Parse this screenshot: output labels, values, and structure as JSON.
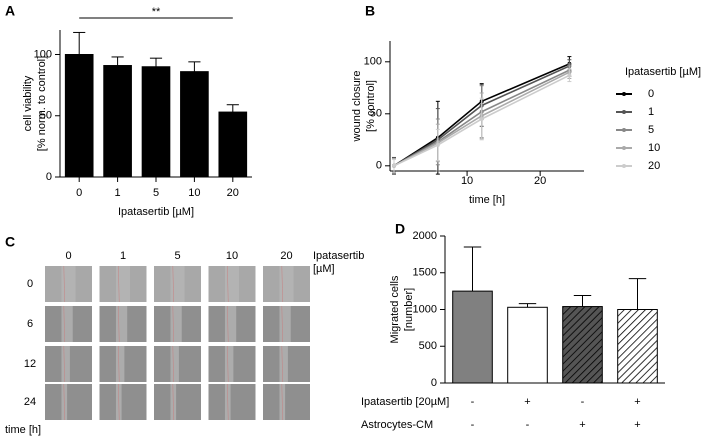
{
  "chart_data": [
    {
      "type": "bar",
      "panel": "A",
      "categories": [
        "0",
        "1",
        "5",
        "10",
        "20"
      ],
      "values": [
        100,
        91,
        90,
        86,
        53
      ],
      "errors": [
        18,
        7,
        7,
        8,
        6
      ],
      "color": "#000000",
      "ylim": [
        0,
        120
      ],
      "yticks": [
        0,
        50,
        100
      ],
      "xlabel": "Ipatasertib [µM]",
      "ylabel": [
        "cell viability",
        "[% norm. to control]"
      ],
      "significance": {
        "label": "**",
        "from": "0",
        "to": "20"
      }
    },
    {
      "type": "line",
      "panel": "B",
      "x": [
        0,
        6,
        12,
        24
      ],
      "xlim": [
        0,
        26
      ],
      "xticks": [
        10,
        20
      ],
      "ylim": [
        -5,
        120
      ],
      "yticks": [
        0,
        50,
        100
      ],
      "xlabel": "time [h]",
      "ylabel": [
        "wound closure",
        "[% control]"
      ],
      "legend_title": "Ipatasertib [µM]",
      "series": [
        {
          "name": "0",
          "color": "#000000",
          "values": [
            0,
            27,
            62,
            98
          ],
          "errors": [
            8,
            35,
            17,
            7
          ]
        },
        {
          "name": "1",
          "color": "#555555",
          "values": [
            0,
            25,
            58,
            96
          ],
          "errors": [
            8,
            30,
            20,
            6
          ]
        },
        {
          "name": "5",
          "color": "#888888",
          "values": [
            0,
            23,
            52,
            92
          ],
          "errors": [
            7,
            22,
            25,
            6
          ]
        },
        {
          "name": "10",
          "color": "#aaaaaa",
          "values": [
            0,
            22,
            48,
            90
          ],
          "errors": [
            7,
            18,
            22,
            6
          ]
        },
        {
          "name": "20",
          "color": "#cccccc",
          "values": [
            0,
            20,
            45,
            87
          ],
          "errors": [
            6,
            15,
            20,
            6
          ]
        }
      ]
    },
    {
      "type": "image_grid",
      "panel": "C",
      "columns": [
        "0",
        "1",
        "5",
        "10",
        "20"
      ],
      "column_title": [
        "Ipatasertib",
        "[µM]"
      ],
      "rows": [
        "0",
        "6",
        "12",
        "24"
      ],
      "row_title": "time [h]"
    },
    {
      "type": "bar",
      "panel": "D",
      "categories": [
        null,
        null,
        null,
        null
      ],
      "values": [
        1250,
        1030,
        1040,
        1000
      ],
      "errors": [
        600,
        50,
        150,
        420
      ],
      "colors": [
        "#808080",
        "#ffffff",
        "#555555",
        "#ffffff"
      ],
      "hatched": [
        false,
        false,
        true,
        true
      ],
      "ylim": [
        0,
        2000
      ],
      "yticks": [
        0,
        500,
        1000,
        1500,
        2000
      ],
      "ylabel": [
        "Migrated cells",
        "[number]"
      ],
      "factors": [
        {
          "name": "Ipatasertib [20µM]",
          "values": [
            "-",
            "+",
            "-",
            "+"
          ]
        },
        {
          "name": "Astrocytes-CM",
          "values": [
            "-",
            "-",
            "+",
            "+"
          ]
        }
      ]
    }
  ]
}
